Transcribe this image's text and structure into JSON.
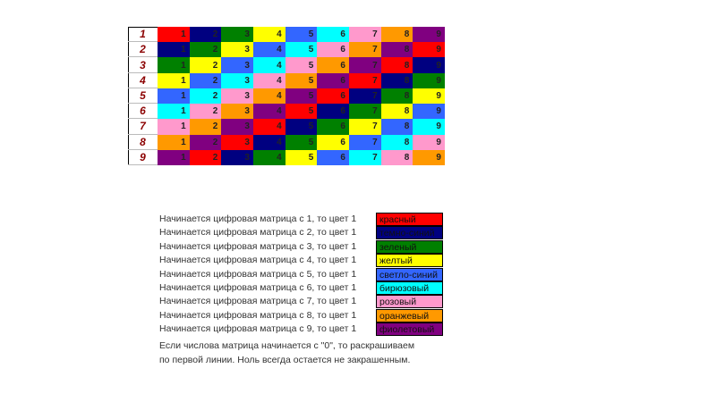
{
  "matrix": {
    "rows": [
      {
        "label": "1",
        "cells": [
          "1",
          "2",
          "3",
          "4",
          "5",
          "6",
          "7",
          "8",
          "9"
        ],
        "colors": [
          "#ff0000",
          "#000080",
          "#008000",
          "#ffff00",
          "#3366ff",
          "#00ffff",
          "#ff99cc",
          "#ff9900",
          "#800080"
        ]
      },
      {
        "label": "2",
        "cells": [
          "1",
          "2",
          "3",
          "4",
          "5",
          "6",
          "7",
          "8",
          "9"
        ],
        "colors": [
          "#000080",
          "#008000",
          "#ffff00",
          "#3366ff",
          "#00ffff",
          "#ff99cc",
          "#ff9900",
          "#800080",
          "#ff0000"
        ]
      },
      {
        "label": "3",
        "cells": [
          "1",
          "2",
          "3",
          "4",
          "5",
          "6",
          "7",
          "8",
          "9"
        ],
        "colors": [
          "#008000",
          "#ffff00",
          "#3366ff",
          "#00ffff",
          "#ff99cc",
          "#ff9900",
          "#800080",
          "#ff0000",
          "#000080"
        ]
      },
      {
        "label": "4",
        "cells": [
          "1",
          "2",
          "3",
          "4",
          "5",
          "6",
          "7",
          "8",
          "9"
        ],
        "colors": [
          "#ffff00",
          "#3366ff",
          "#00ffff",
          "#ff99cc",
          "#ff9900",
          "#800080",
          "#ff0000",
          "#000080",
          "#008000"
        ]
      },
      {
        "label": "5",
        "cells": [
          "1",
          "2",
          "3",
          "4",
          "5",
          "6",
          "7",
          "8",
          "9"
        ],
        "colors": [
          "#3366ff",
          "#00ffff",
          "#ff99cc",
          "#ff9900",
          "#800080",
          "#ff0000",
          "#000080",
          "#008000",
          "#ffff00"
        ]
      },
      {
        "label": "6",
        "cells": [
          "1",
          "2",
          "3",
          "4",
          "5",
          "6",
          "7",
          "8",
          "9"
        ],
        "colors": [
          "#00ffff",
          "#ff99cc",
          "#ff9900",
          "#800080",
          "#ff0000",
          "#000080",
          "#008000",
          "#ffff00",
          "#3366ff"
        ]
      },
      {
        "label": "7",
        "cells": [
          "1",
          "2",
          "3",
          "4",
          "5",
          "6",
          "7",
          "8",
          "9"
        ],
        "colors": [
          "#ff99cc",
          "#ff9900",
          "#800080",
          "#ff0000",
          "#000080",
          "#008000",
          "#ffff00",
          "#3366ff",
          "#00ffff"
        ]
      },
      {
        "label": "8",
        "cells": [
          "1",
          "2",
          "3",
          "4",
          "5",
          "6",
          "7",
          "8",
          "9"
        ],
        "colors": [
          "#ff9900",
          "#800080",
          "#ff0000",
          "#000080",
          "#008000",
          "#ffff00",
          "#3366ff",
          "#00ffff",
          "#ff99cc"
        ]
      },
      {
        "label": "9",
        "cells": [
          "1",
          "2",
          "3",
          "4",
          "5",
          "6",
          "7",
          "8",
          "9"
        ],
        "colors": [
          "#800080",
          "#ff0000",
          "#000080",
          "#008000",
          "#ffff00",
          "#3366ff",
          "#00ffff",
          "#ff99cc",
          "#ff9900"
        ]
      }
    ]
  },
  "legend": {
    "items": [
      {
        "text": "Начинается цифровая матрица с 1, то цвет 1",
        "color_name": "красный",
        "color": "#ff0000"
      },
      {
        "text": "Начинается цифровая матрица с 2, то цвет 1",
        "color_name": "темно-синий",
        "color": "#000080"
      },
      {
        "text": "Начинается цифровая матрица с 3, то цвет 1",
        "color_name": "зеленый",
        "color": "#008000"
      },
      {
        "text": "Начинается цифровая матрица с 4, то цвет 1",
        "color_name": "желтый",
        "color": "#ffff00"
      },
      {
        "text": "Начинается цифровая матрица с 5, то цвет 1",
        "color_name": "светло-синий",
        "color": "#3366ff"
      },
      {
        "text": "Начинается цифровая матрица с 6, то цвет 1",
        "color_name": "бирюзовый",
        "color": "#00ffff"
      },
      {
        "text": "Начинается цифровая матрица с 7, то цвет 1",
        "color_name": "розовый",
        "color": "#ff99cc"
      },
      {
        "text": "Начинается цифровая матрица с 8, то цвет 1",
        "color_name": "оранжевый",
        "color": "#ff9900"
      },
      {
        "text": "Начинается цифровая матрица с 9, то цвет 1",
        "color_name": "фиолетовый",
        "color": "#800080"
      }
    ]
  },
  "note": {
    "lines": [
      "Если числова матрица начинается с \"0\", то раскрашиваем",
      "по первой линии. Ноль всегда остается не закрашенным."
    ]
  }
}
